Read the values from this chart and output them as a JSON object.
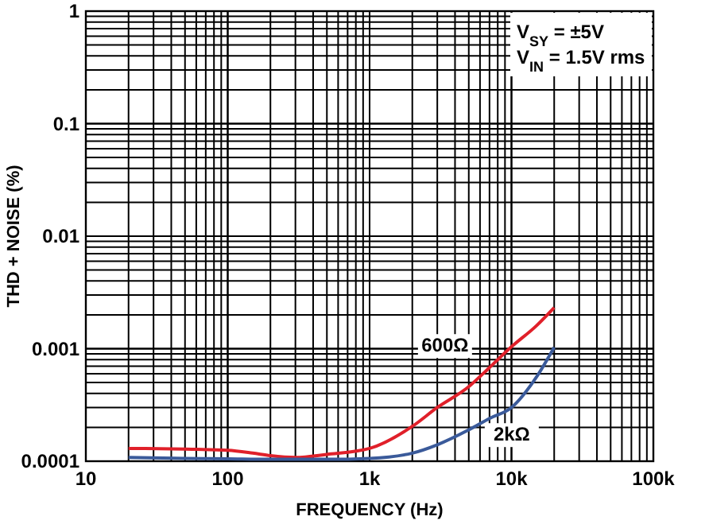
{
  "chart_data": {
    "type": "line",
    "xlabel": "FREQUENCY (Hz)",
    "ylabel": "THD + NOISE (%)",
    "log": "xy",
    "grid": true,
    "xlim": [
      10,
      100000
    ],
    "xticks": [
      10,
      100,
      {
        "value": 1000,
        "label": "1k"
      },
      {
        "value": 10000,
        "label": "10k"
      },
      {
        "value": 100000,
        "label": "100k"
      }
    ],
    "ylim": [
      0.0001,
      1
    ],
    "yticks": [
      0.0001,
      0.001,
      0.01,
      0.1,
      1
    ],
    "annotations": [
      "V$_{SY}$ = ±5V",
      "V$_{IN}$ = 1.5V rms"
    ],
    "series": [
      {
        "name": "600Ω",
        "color": "#e0202a",
        "x": [
          20,
          50,
          100,
          150,
          200,
          300,
          500,
          1000,
          2000,
          3000,
          5000,
          7000,
          10000,
          15000,
          20000
        ],
        "values": [
          0.00013,
          0.000128,
          0.000125,
          0.000118,
          0.000112,
          0.000108,
          0.000115,
          0.00013,
          0.000204,
          0.0003,
          0.00046,
          0.00068,
          0.00104,
          0.0016,
          0.00232
        ]
      },
      {
        "name": "2kΩ",
        "color": "#3a5a9a",
        "x": [
          20,
          50,
          100,
          200,
          500,
          1000,
          2000,
          3000,
          5000,
          7000,
          10000,
          15000,
          20000
        ],
        "values": [
          0.000108,
          0.000106,
          0.000105,
          0.000104,
          0.000104,
          0.000106,
          0.000118,
          0.00014,
          0.00019,
          0.00024,
          0.0003,
          0.00056,
          0.00103
        ]
      }
    ]
  }
}
